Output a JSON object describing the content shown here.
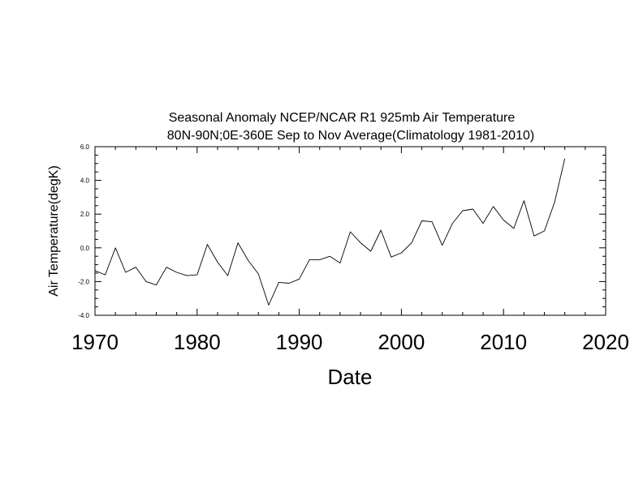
{
  "chart_data": {
    "type": "line",
    "title_line1": "Seasonal Anomaly NCEP/NCAR R1 925mb  Air Temperature",
    "title_line2": "80N-90N;0E-360E Sep to Nov Average(Climatology 1981-2010)",
    "xlabel": "Date",
    "ylabel": "Air Temperature(degK)",
    "xlim": [
      1970,
      2020
    ],
    "ylim": [
      -4.0,
      6.0
    ],
    "x_ticks": [
      "1970",
      "1980",
      "1990",
      "2000",
      "2010",
      "2020"
    ],
    "y_ticks": [
      "6.0",
      "4.0",
      "2.0",
      "0.0",
      "-2.0",
      "-4.0"
    ],
    "grid": false,
    "line_color": "#000000",
    "x": [
      1970,
      1971,
      1972,
      1973,
      1974,
      1975,
      1976,
      1977,
      1978,
      1979,
      1980,
      1981,
      1982,
      1983,
      1984,
      1985,
      1986,
      1987,
      1988,
      1989,
      1990,
      1991,
      1992,
      1993,
      1994,
      1995,
      1996,
      1997,
      1998,
      1999,
      2000,
      2001,
      2002,
      2003,
      2004,
      2005,
      2006,
      2007,
      2008,
      2009,
      2010,
      2011,
      2012,
      2013,
      2014,
      2015,
      2016
    ],
    "values": [
      -1.35,
      -1.6,
      0.0,
      -1.45,
      -1.15,
      -2.0,
      -2.2,
      -1.15,
      -1.45,
      -1.65,
      -1.6,
      0.2,
      -0.85,
      -1.65,
      0.3,
      -0.75,
      -1.55,
      -3.4,
      -2.05,
      -2.1,
      -1.85,
      -0.7,
      -0.7,
      -0.5,
      -0.9,
      0.95,
      0.3,
      -0.2,
      1.05,
      -0.55,
      -0.3,
      0.3,
      1.6,
      1.55,
      0.15,
      1.45,
      2.2,
      2.3,
      1.45,
      2.45,
      1.65,
      1.15,
      2.8,
      0.7,
      1.0,
      2.7,
      5.3
    ]
  }
}
